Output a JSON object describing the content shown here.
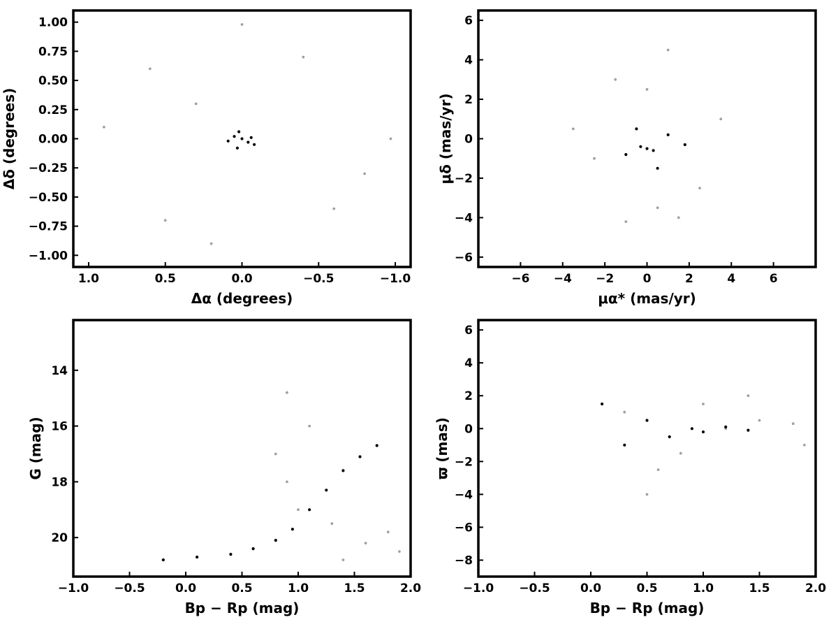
{
  "colors": {
    "field": "#a0a0a0",
    "members": "#000000",
    "frame": "#000000"
  },
  "chart_data": [
    {
      "id": "sky",
      "type": "scatter",
      "xlabel": "Δα (degrees)",
      "ylabel": "Δδ (degrees)",
      "xlim": [
        1.1,
        -1.1
      ],
      "ylim": [
        -1.1,
        1.1
      ],
      "xticks": [
        1.0,
        0.5,
        0.0,
        -0.5,
        -1.0
      ],
      "xtick_labels": [
        "1.0",
        "0.5",
        "0.0",
        "−0.5",
        "−1.0"
      ],
      "yticks": [
        -1.0,
        -0.75,
        -0.5,
        -0.25,
        0.0,
        0.25,
        0.5,
        0.75,
        1.0
      ],
      "ytick_labels": [
        "−1.00",
        "−0.75",
        "−0.50",
        "−0.25",
        "0.00",
        "0.25",
        "0.50",
        "0.75",
        "1.00"
      ],
      "series": [
        {
          "role": "field",
          "color": "#a0a0a0",
          "points": [
            [
              0.6,
              0.6
            ],
            [
              -0.4,
              0.7
            ],
            [
              0.2,
              -0.9
            ],
            [
              -0.8,
              -0.3
            ],
            [
              0.9,
              0.1
            ],
            [
              0.0,
              0.98
            ],
            [
              -0.97,
              0.0
            ],
            [
              0.5,
              -0.7
            ],
            [
              -0.6,
              -0.6
            ],
            [
              0.3,
              0.3
            ]
          ]
        },
        {
          "role": "members",
          "color": "#000000",
          "points": [
            [
              0.0,
              0.0
            ],
            [
              0.05,
              0.02
            ],
            [
              -0.04,
              -0.03
            ],
            [
              0.02,
              0.06
            ],
            [
              -0.06,
              0.01
            ],
            [
              0.09,
              -0.02
            ],
            [
              -0.08,
              -0.05
            ],
            [
              0.03,
              -0.08
            ]
          ]
        }
      ]
    },
    {
      "id": "proper-motion",
      "type": "scatter",
      "xlabel": "μα* (mas/yr)",
      "ylabel": "μδ (mas/yr)",
      "xlim": [
        -8,
        8
      ],
      "ylim": [
        -6.5,
        6.5
      ],
      "xticks": [
        -6,
        -4,
        -2,
        0,
        2,
        4,
        6
      ],
      "xtick_labels": [
        "−6",
        "−4",
        "−2",
        "0",
        "2",
        "4",
        "6"
      ],
      "yticks": [
        -6,
        -4,
        -2,
        0,
        2,
        4,
        6
      ],
      "ytick_labels": [
        "−6",
        "−4",
        "−2",
        "0",
        "2",
        "4",
        "6"
      ],
      "series": [
        {
          "role": "field",
          "color": "#a0a0a0",
          "points": [
            [
              0.5,
              -3.5
            ],
            [
              1.5,
              -4.0
            ],
            [
              -1.0,
              -4.2
            ],
            [
              2.5,
              -2.5
            ],
            [
              -2.5,
              -1.0
            ],
            [
              -3.5,
              0.5
            ],
            [
              0.0,
              2.5
            ],
            [
              3.5,
              1.0
            ],
            [
              -1.5,
              3.0
            ],
            [
              1.0,
              4.5
            ]
          ]
        },
        {
          "role": "members",
          "color": "#000000",
          "points": [
            [
              0.0,
              -0.5
            ],
            [
              0.3,
              -0.6
            ],
            [
              -0.3,
              -0.4
            ],
            [
              -1.0,
              -0.8
            ],
            [
              1.0,
              0.2
            ],
            [
              0.5,
              -1.5
            ],
            [
              -0.5,
              0.5
            ],
            [
              1.8,
              -0.3
            ]
          ]
        }
      ]
    },
    {
      "id": "cmd",
      "type": "scatter",
      "xlabel": "Bp − Rp (mag)",
      "ylabel": "G (mag)",
      "xlim": [
        -1.0,
        2.0
      ],
      "ylim": [
        21.4,
        12.2
      ],
      "y_inverted": true,
      "xticks": [
        -1.0,
        -0.5,
        0.0,
        0.5,
        1.0,
        1.5,
        2.0
      ],
      "xtick_labels": [
        "−1.0",
        "−0.5",
        "0.0",
        "0.5",
        "1.0",
        "1.5",
        "2.0"
      ],
      "yticks": [
        20,
        18,
        16,
        14
      ],
      "ytick_labels": [
        "20",
        "18",
        "16",
        "14"
      ],
      "series": [
        {
          "role": "field",
          "color": "#a0a0a0",
          "points": [
            [
              1.6,
              20.2
            ],
            [
              1.8,
              19.8
            ],
            [
              1.3,
              19.5
            ],
            [
              1.0,
              19.0
            ],
            [
              0.9,
              18.0
            ],
            [
              0.8,
              17.0
            ],
            [
              1.1,
              16.0
            ],
            [
              0.9,
              14.8
            ],
            [
              1.9,
              20.5
            ],
            [
              1.4,
              20.8
            ]
          ]
        },
        {
          "role": "members",
          "color": "#000000",
          "points": [
            [
              -0.2,
              20.8
            ],
            [
              0.1,
              20.7
            ],
            [
              0.4,
              20.6
            ],
            [
              0.6,
              20.4
            ],
            [
              0.8,
              20.1
            ],
            [
              0.95,
              19.7
            ],
            [
              1.1,
              19.0
            ],
            [
              1.25,
              18.3
            ],
            [
              1.4,
              17.6
            ],
            [
              1.55,
              17.1
            ],
            [
              1.7,
              16.7
            ]
          ]
        }
      ]
    },
    {
      "id": "parallax",
      "type": "scatter",
      "xlabel": "Bp − Rp (mag)",
      "ylabel": "ϖ (mas)",
      "xlim": [
        -1.0,
        2.0
      ],
      "ylim": [
        -9.0,
        6.6
      ],
      "xticks": [
        -1.0,
        -0.5,
        0.0,
        0.5,
        1.0,
        1.5,
        2.0
      ],
      "xtick_labels": [
        "−1.0",
        "−0.5",
        "0.0",
        "0.5",
        "1.0",
        "1.5",
        "2.0"
      ],
      "yticks": [
        -8,
        -6,
        -4,
        -2,
        0,
        2,
        4,
        6
      ],
      "ytick_labels": [
        "−8",
        "−6",
        "−4",
        "−2",
        "0",
        "2",
        "4",
        "6"
      ],
      "series": [
        {
          "role": "field",
          "color": "#a0a0a0",
          "points": [
            [
              1.5,
              0.5
            ],
            [
              1.8,
              0.3
            ],
            [
              1.2,
              0.0
            ],
            [
              1.0,
              1.5
            ],
            [
              0.8,
              -1.5
            ],
            [
              0.6,
              -2.5
            ],
            [
              1.4,
              2.0
            ],
            [
              0.3,
              1.0
            ],
            [
              1.9,
              -1.0
            ],
            [
              0.5,
              -4.0
            ]
          ]
        },
        {
          "role": "members",
          "color": "#000000",
          "points": [
            [
              0.9,
              0.0
            ],
            [
              1.0,
              -0.2
            ],
            [
              1.2,
              0.1
            ],
            [
              0.7,
              -0.5
            ],
            [
              0.5,
              0.5
            ],
            [
              0.3,
              -1.0
            ],
            [
              1.4,
              -0.1
            ],
            [
              0.1,
              1.5
            ]
          ]
        }
      ]
    }
  ]
}
